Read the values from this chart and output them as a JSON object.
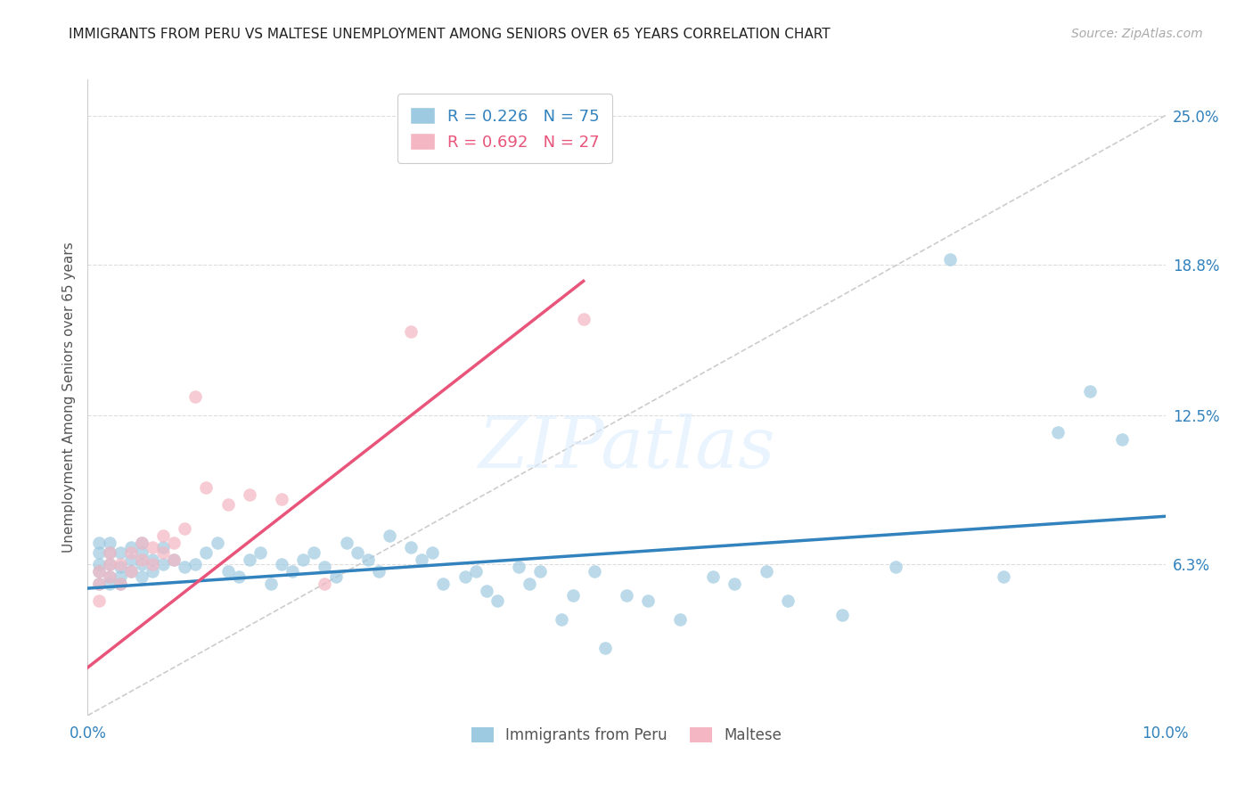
{
  "title": "IMMIGRANTS FROM PERU VS MALTESE UNEMPLOYMENT AMONG SENIORS OVER 65 YEARS CORRELATION CHART",
  "source": "Source: ZipAtlas.com",
  "ylabel_label": "Unemployment Among Seniors over 65 years",
  "xlim": [
    0.0,
    0.1
  ],
  "ylim": [
    0.0,
    0.265
  ],
  "ytick_values": [
    0.063,
    0.125,
    0.188,
    0.25
  ],
  "ytick_labels": [
    "6.3%",
    "12.5%",
    "18.8%",
    "25.0%"
  ],
  "xtick_values": [
    0.0,
    0.1
  ],
  "xtick_labels": [
    "0.0%",
    "10.0%"
  ],
  "legend1_r": "0.226",
  "legend1_n": "75",
  "legend2_r": "0.692",
  "legend2_n": "27",
  "blue_color": "#9ecae1",
  "pink_color": "#f4b6c2",
  "blue_line_color": "#3182bd",
  "pink_line_color": "#e8547a",
  "diagonal_color": "#cccccc",
  "background": "#ffffff",
  "watermark_text": "ZIPatlas",
  "peru_x": [
    0.001,
    0.001,
    0.001,
    0.001,
    0.001,
    0.002,
    0.002,
    0.002,
    0.002,
    0.002,
    0.003,
    0.003,
    0.003,
    0.003,
    0.004,
    0.004,
    0.004,
    0.005,
    0.005,
    0.005,
    0.005,
    0.006,
    0.006,
    0.007,
    0.007,
    0.008,
    0.009,
    0.01,
    0.011,
    0.012,
    0.013,
    0.014,
    0.015,
    0.016,
    0.017,
    0.018,
    0.019,
    0.02,
    0.021,
    0.022,
    0.023,
    0.024,
    0.025,
    0.026,
    0.027,
    0.028,
    0.03,
    0.031,
    0.032,
    0.033,
    0.035,
    0.036,
    0.037,
    0.038,
    0.04,
    0.041,
    0.042,
    0.044,
    0.045,
    0.047,
    0.048,
    0.05,
    0.052,
    0.055,
    0.058,
    0.06,
    0.063,
    0.065,
    0.07,
    0.075,
    0.08,
    0.085,
    0.09,
    0.093,
    0.096
  ],
  "peru_y": [
    0.055,
    0.06,
    0.063,
    0.068,
    0.072,
    0.058,
    0.063,
    0.068,
    0.072,
    0.055,
    0.058,
    0.062,
    0.068,
    0.055,
    0.06,
    0.065,
    0.07,
    0.058,
    0.063,
    0.068,
    0.072,
    0.06,
    0.065,
    0.063,
    0.07,
    0.065,
    0.062,
    0.063,
    0.068,
    0.072,
    0.06,
    0.058,
    0.065,
    0.068,
    0.055,
    0.063,
    0.06,
    0.065,
    0.068,
    0.062,
    0.058,
    0.072,
    0.068,
    0.065,
    0.06,
    0.075,
    0.07,
    0.065,
    0.068,
    0.055,
    0.058,
    0.06,
    0.052,
    0.048,
    0.062,
    0.055,
    0.06,
    0.04,
    0.05,
    0.06,
    0.028,
    0.05,
    0.048,
    0.04,
    0.058,
    0.055,
    0.06,
    0.048,
    0.042,
    0.062,
    0.19,
    0.058,
    0.118,
    0.135,
    0.115
  ],
  "maltese_x": [
    0.001,
    0.001,
    0.001,
    0.002,
    0.002,
    0.002,
    0.003,
    0.003,
    0.004,
    0.004,
    0.005,
    0.005,
    0.006,
    0.006,
    0.007,
    0.007,
    0.008,
    0.008,
    0.009,
    0.01,
    0.011,
    0.013,
    0.015,
    0.018,
    0.022,
    0.03,
    0.046
  ],
  "maltese_y": [
    0.048,
    0.055,
    0.06,
    0.058,
    0.063,
    0.068,
    0.055,
    0.063,
    0.06,
    0.068,
    0.065,
    0.072,
    0.063,
    0.07,
    0.068,
    0.075,
    0.065,
    0.072,
    0.078,
    0.133,
    0.095,
    0.088,
    0.092,
    0.09,
    0.055,
    0.16,
    0.165
  ],
  "blue_slope": 0.3,
  "blue_intercept": 0.053,
  "pink_slope": 3.5,
  "pink_intercept": 0.02
}
